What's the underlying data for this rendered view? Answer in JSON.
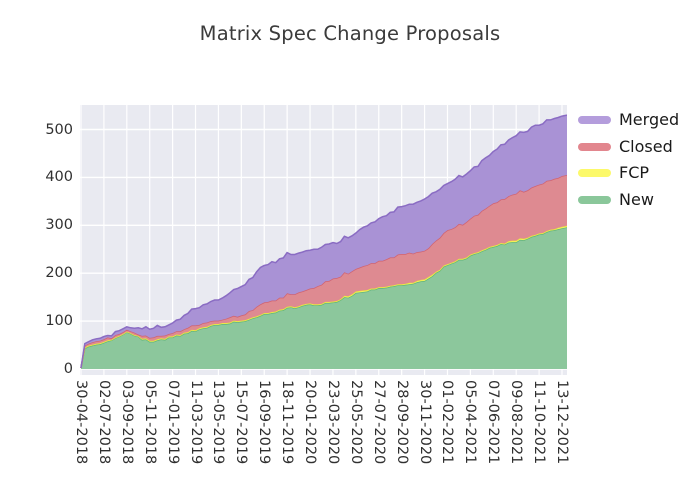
{
  "title": "Matrix Spec Change Proposals",
  "legend": {
    "items": [
      {
        "label": "Merged",
        "color": "#b49ddc"
      },
      {
        "label": "Closed",
        "color": "#e2868e"
      },
      {
        "label": "FCP",
        "color": "#fcf96a"
      },
      {
        "label": "New",
        "color": "#8ac79a"
      }
    ]
  },
  "chart_data": {
    "type": "area",
    "stacked": true,
    "title": "Matrix Spec Change Proposals",
    "xlabel": "",
    "ylabel": "",
    "x_tick_labels": [
      "30-04-2018",
      "02-07-2018",
      "03-09-2018",
      "05-11-2018",
      "07-01-2019",
      "11-03-2019",
      "13-05-2019",
      "15-07-2019",
      "16-09-2019",
      "18-11-2019",
      "20-01-2020",
      "23-03-2020",
      "25-05-2020",
      "27-07-2020",
      "28-09-2020",
      "30-11-2020",
      "01-02-2021",
      "05-04-2021",
      "07-06-2021",
      "09-08-2021",
      "11-10-2021",
      "13-12-2021"
    ],
    "y_ticks": [
      0,
      100,
      200,
      300,
      400,
      500
    ],
    "ylim": [
      0,
      550
    ],
    "grid": true,
    "grid_color": "#ffffff",
    "plot_background": "#e9eaf1",
    "legend_position": "upper-right-outside",
    "stack_order_bottom_to_top": [
      "New",
      "FCP",
      "Closed",
      "Merged"
    ],
    "series": [
      {
        "name": "New",
        "fill": "#8cc79c",
        "stroke": "#5fb47b",
        "values": [
          2,
          53,
          78,
          56,
          66,
          81,
          93,
          100,
          113,
          126,
          133,
          138,
          158,
          168,
          176,
          184,
          218,
          236,
          255,
          266,
          280,
          294
        ]
      },
      {
        "name": "FCP",
        "fill": "#fbf964",
        "stroke": "#e9e23f",
        "values": [
          0,
          2,
          1,
          2,
          2,
          2,
          2,
          2,
          2,
          2,
          2,
          2,
          3,
          2,
          2,
          3,
          2,
          2,
          2,
          3,
          2,
          3
        ]
      },
      {
        "name": "Closed",
        "fill": "#de8a91",
        "stroke": "#d16370",
        "values": [
          0,
          5,
          4,
          6,
          6,
          8,
          8,
          10,
          23,
          26,
          31,
          48,
          48,
          54,
          62,
          60,
          70,
          74,
          89,
          98,
          102,
          106
        ]
      },
      {
        "name": "Merged",
        "fill": "#a992d5",
        "stroke": "#8a6cc3",
        "values": [
          0,
          5,
          6,
          19,
          21,
          35,
          44,
          60,
          78,
          84,
          80,
          74,
          75,
          88,
          100,
          108,
          98,
          100,
          108,
          122,
          126,
          125
        ]
      }
    ],
    "final_totals": {
      "New": 294,
      "FCP": 3,
      "Closed": 106,
      "Merged": 125,
      "total": 528
    }
  }
}
